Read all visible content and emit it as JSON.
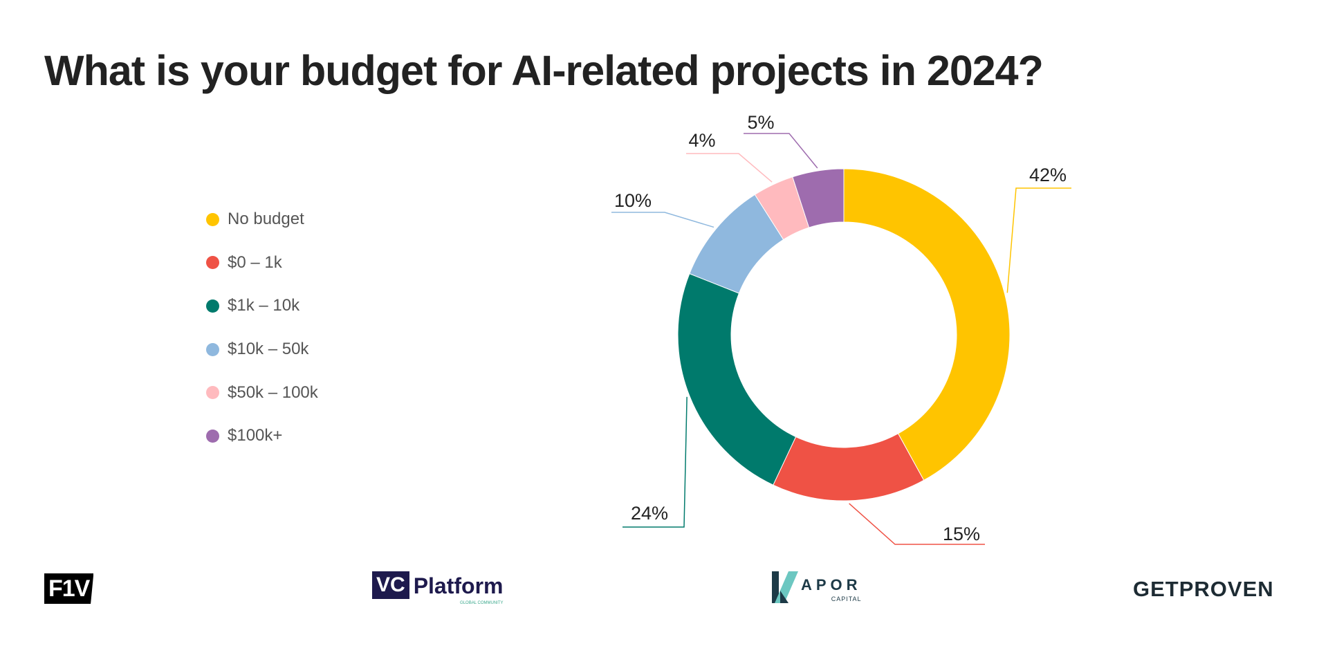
{
  "title": "What is your budget for AI-related projects in 2024?",
  "chart_data": {
    "type": "donut",
    "title": "What is your budget for AI-related projects in 2024?",
    "legend_placement": "left",
    "categories": [
      "No budget",
      "$0 – 1k",
      "$1k – 10k",
      "$10k – 50k",
      "$50k – 100k",
      "$100k+"
    ],
    "values": [
      42,
      15,
      24,
      10,
      4,
      5
    ],
    "labels": [
      "42%",
      "15%",
      "24%",
      "10%",
      "4%",
      "5%"
    ],
    "colors": [
      "#FFC400",
      "#EF5245",
      "#007A6C",
      "#8FB8DE",
      "#FFBABE",
      "#9E6CAE"
    ],
    "unit": "%"
  },
  "logos": {
    "f1v": "F1V",
    "vc_platform": "VC",
    "vc_platform_name": "Platform",
    "vc_platform_sub": "GLOBAL COMMUNITY",
    "kapor": "APOR",
    "kapor_sub": "CAPITAL",
    "getproven": "GETPROVEN"
  }
}
